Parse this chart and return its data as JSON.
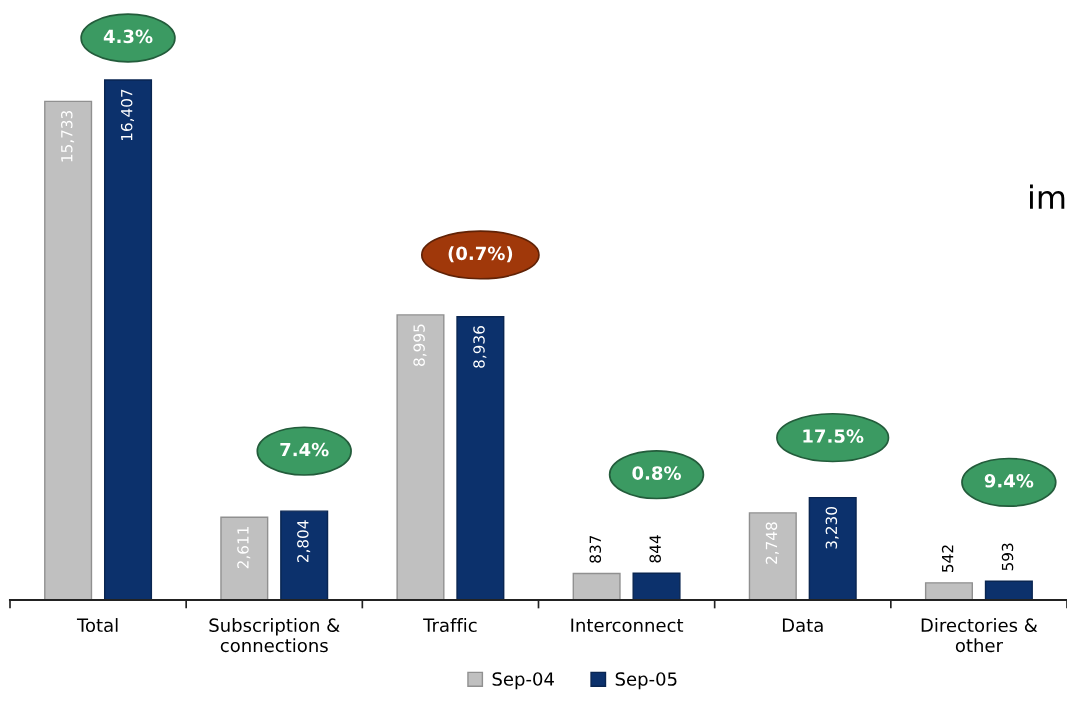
{
  "chart_data": {
    "type": "bar",
    "categories": [
      "Total",
      "Subscription &\nconnections",
      "Traffic",
      "Interconnect",
      "Data",
      "Directories &\nother"
    ],
    "series": [
      {
        "name": "Sep-04",
        "color": "#c0c0c0",
        "values": [
          15733,
          2611,
          8995,
          837,
          2748,
          542
        ],
        "value_labels": [
          "15,733",
          "2,611",
          "8,995",
          "837",
          "2,748",
          "542"
        ]
      },
      {
        "name": "Sep-05",
        "color": "#0c316c",
        "values": [
          16407,
          2804,
          8936,
          844,
          3230,
          593
        ],
        "value_labels": [
          "16,407",
          "2,804",
          "8,936",
          "844",
          "3,230",
          "593"
        ]
      }
    ],
    "tick_labels": "x",
    "legend": "bottom",
    "annotations": [
      "4.3%",
      "7.4%",
      "(0.7%)",
      "0.8%",
      "17.5%",
      "9.4%",
      "im"
    ]
  }
}
